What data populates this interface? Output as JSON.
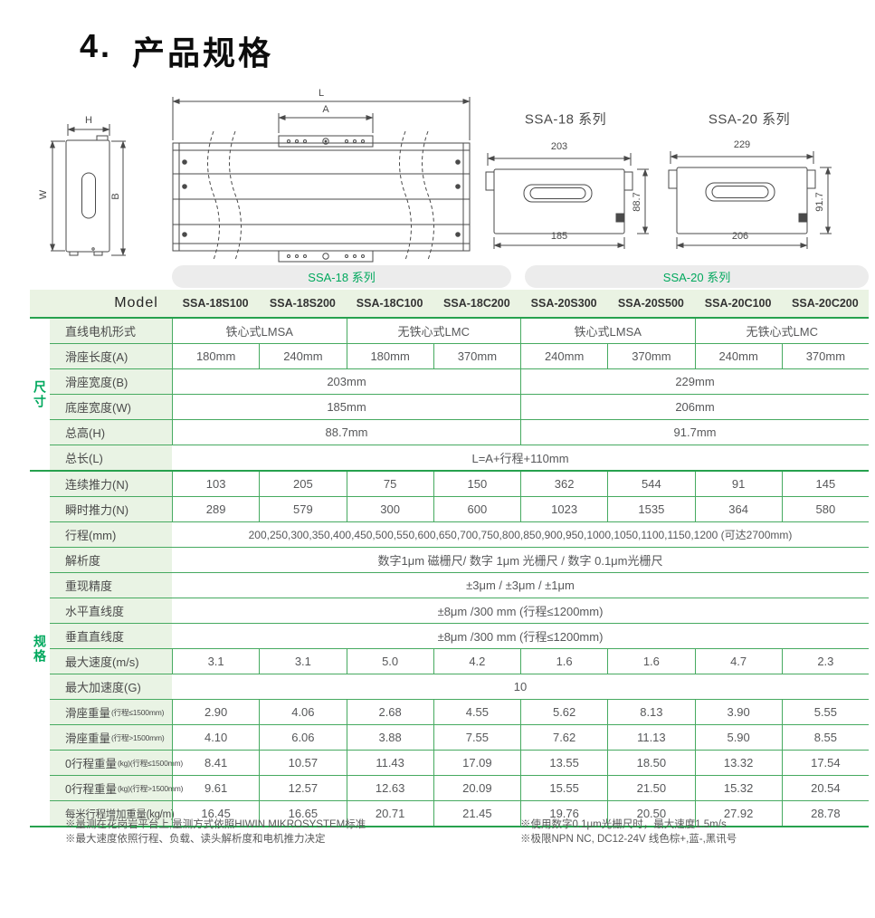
{
  "page": {
    "title_number": "4.",
    "title": "产品规格"
  },
  "colors": {
    "accent_green": "#00a85d",
    "table_border_green": "#46aa60",
    "section_line_green": "#27a14e",
    "label_bg_green": "#e9f3e4",
    "pill_bg": "#ececec"
  },
  "drawings": {
    "side_view": {
      "height_label": "H",
      "width_label": "W",
      "base_label": "B"
    },
    "top_view": {
      "length_label": "L",
      "slider_label": "A"
    },
    "ssa18_view": {
      "title": "SSA-18 系列",
      "top_width": "203",
      "height": "88.7",
      "base_width": "185"
    },
    "ssa20_view": {
      "title": "SSA-20 系列",
      "top_width": "229",
      "height": "91.7",
      "base_width": "206"
    }
  },
  "series_pills": {
    "ssa18": "SSA-18 系列",
    "ssa20": "SSA-20 系列"
  },
  "table": {
    "model_label": "Model",
    "models": [
      "SSA-18S100",
      "SSA-18S200",
      "SSA-18C100",
      "SSA-18C200",
      "SSA-20S300",
      "SSA-20S500",
      "SSA-20C100",
      "SSA-20C200"
    ],
    "sections": [
      {
        "label": "尺寸",
        "rows": [
          {
            "label": "直线电机形式",
            "cells": [
              {
                "t": "铁心式LMSA",
                "s": 2
              },
              {
                "t": "无铁心式LMC",
                "s": 2
              },
              {
                "t": "铁心式LMSA",
                "s": 2
              },
              {
                "t": "无铁心式LMC",
                "s": 2
              }
            ]
          },
          {
            "label": "滑座长度(A)",
            "cells": [
              {
                "t": "180mm",
                "s": 1
              },
              {
                "t": "240mm",
                "s": 1
              },
              {
                "t": "180mm",
                "s": 1
              },
              {
                "t": "370mm",
                "s": 1
              },
              {
                "t": "240mm",
                "s": 1
              },
              {
                "t": "370mm",
                "s": 1
              },
              {
                "t": "240mm",
                "s": 1
              },
              {
                "t": "370mm",
                "s": 1
              }
            ]
          },
          {
            "label": "滑座宽度(B)",
            "cells": [
              {
                "t": "203mm",
                "s": 4
              },
              {
                "t": "229mm",
                "s": 4
              }
            ]
          },
          {
            "label": "底座宽度(W)",
            "cells": [
              {
                "t": "185mm",
                "s": 4
              },
              {
                "t": "206mm",
                "s": 4
              }
            ]
          },
          {
            "label": "总高(H)",
            "cells": [
              {
                "t": "88.7mm",
                "s": 4
              },
              {
                "t": "91.7mm",
                "s": 4
              }
            ]
          },
          {
            "label": "总长(L)",
            "cells": [
              {
                "t": "L=A+行程+110mm",
                "s": 8
              }
            ]
          }
        ]
      },
      {
        "label": "规格",
        "rows": [
          {
            "label": "连续推力(N)",
            "cells": [
              {
                "t": "103",
                "s": 1
              },
              {
                "t": "205",
                "s": 1
              },
              {
                "t": "75",
                "s": 1
              },
              {
                "t": "150",
                "s": 1
              },
              {
                "t": "362",
                "s": 1
              },
              {
                "t": "544",
                "s": 1
              },
              {
                "t": "91",
                "s": 1
              },
              {
                "t": "145",
                "s": 1
              }
            ]
          },
          {
            "label": "瞬时推力(N)",
            "cells": [
              {
                "t": "289",
                "s": 1
              },
              {
                "t": "579",
                "s": 1
              },
              {
                "t": "300",
                "s": 1
              },
              {
                "t": "600",
                "s": 1
              },
              {
                "t": "1023",
                "s": 1
              },
              {
                "t": "1535",
                "s": 1
              },
              {
                "t": "364",
                "s": 1
              },
              {
                "t": "580",
                "s": 1
              }
            ]
          },
          {
            "label": "行程(mm)",
            "cells": [
              {
                "t": "200,250,300,350,400,450,500,550,600,650,700,750,800,850,900,950,1000,1050,1100,1150,1200 (可达2700mm)",
                "s": 8,
                "fs": 12
              }
            ]
          },
          {
            "label": "解析度",
            "cells": [
              {
                "t": "数字1μm 磁栅尺/ 数字 1μm 光栅尺 / 数字 0.1μm光栅尺",
                "s": 8
              }
            ]
          },
          {
            "label": "重现精度",
            "cells": [
              {
                "t": "±3μm / ±3μm / ±1μm",
                "s": 8
              }
            ]
          },
          {
            "label": "水平直线度",
            "cells": [
              {
                "t": "±8μm /300 mm (行程≤1200mm)",
                "s": 8
              }
            ]
          },
          {
            "label": "垂直直线度",
            "cells": [
              {
                "t": "±8μm /300 mm (行程≤1200mm)",
                "s": 8
              }
            ]
          },
          {
            "label": "最大速度(m/s)",
            "cells": [
              {
                "t": "3.1",
                "s": 1
              },
              {
                "t": "3.1",
                "s": 1
              },
              {
                "t": "5.0",
                "s": 1
              },
              {
                "t": "4.2",
                "s": 1
              },
              {
                "t": "1.6",
                "s": 1
              },
              {
                "t": "1.6",
                "s": 1
              },
              {
                "t": "4.7",
                "s": 1
              },
              {
                "t": "2.3",
                "s": 1
              }
            ]
          },
          {
            "label": "最大加速度(G)",
            "cells": [
              {
                "t": "10",
                "s": 8
              }
            ]
          },
          {
            "label": "滑座重量",
            "small": "(行程≤1500mm)",
            "cells": [
              {
                "t": "2.90",
                "s": 1
              },
              {
                "t": "4.06",
                "s": 1
              },
              {
                "t": "2.68",
                "s": 1
              },
              {
                "t": "4.55",
                "s": 1
              },
              {
                "t": "5.62",
                "s": 1
              },
              {
                "t": "8.13",
                "s": 1
              },
              {
                "t": "3.90",
                "s": 1
              },
              {
                "t": "5.55",
                "s": 1
              }
            ]
          },
          {
            "label": "滑座重量",
            "small": "(行程>1500mm)",
            "cells": [
              {
                "t": "4.10",
                "s": 1
              },
              {
                "t": "6.06",
                "s": 1
              },
              {
                "t": "3.88",
                "s": 1
              },
              {
                "t": "7.55",
                "s": 1
              },
              {
                "t": "7.62",
                "s": 1
              },
              {
                "t": "11.13",
                "s": 1
              },
              {
                "t": "5.90",
                "s": 1
              },
              {
                "t": "8.55",
                "s": 1
              }
            ]
          },
          {
            "label": "0行程重量",
            "small": "(kg)(行程≤1500mm)",
            "cells": [
              {
                "t": "8.41",
                "s": 1
              },
              {
                "t": "10.57",
                "s": 1
              },
              {
                "t": "11.43",
                "s": 1
              },
              {
                "t": "17.09",
                "s": 1
              },
              {
                "t": "13.55",
                "s": 1
              },
              {
                "t": "18.50",
                "s": 1
              },
              {
                "t": "13.32",
                "s": 1
              },
              {
                "t": "17.54",
                "s": 1
              }
            ]
          },
          {
            "label": "0行程重量",
            "small": "(kg)(行程>1500mm)",
            "cells": [
              {
                "t": "9.61",
                "s": 1
              },
              {
                "t": "12.57",
                "s": 1
              },
              {
                "t": "12.63",
                "s": 1
              },
              {
                "t": "20.09",
                "s": 1
              },
              {
                "t": "15.55",
                "s": 1
              },
              {
                "t": "21.50",
                "s": 1
              },
              {
                "t": "15.32",
                "s": 1
              },
              {
                "t": "20.54",
                "s": 1
              }
            ]
          },
          {
            "label": "每米行程增加重量(kg/m)",
            "compact": true,
            "cells": [
              {
                "t": "16.45",
                "s": 1
              },
              {
                "t": "16.65",
                "s": 1
              },
              {
                "t": "20.71",
                "s": 1
              },
              {
                "t": "21.45",
                "s": 1
              },
              {
                "t": "19.76",
                "s": 1
              },
              {
                "t": "20.50",
                "s": 1
              },
              {
                "t": "27.92",
                "s": 1
              },
              {
                "t": "28.78",
                "s": 1
              }
            ]
          }
        ]
      }
    ]
  },
  "footnotes": {
    "left": [
      "※量测在花岗岩平台上,量测方式依照HIWIN MIKROSYSTEM标准",
      "※最大速度依照行程、负载、读头解析度和电机推力决定"
    ],
    "right": [
      "※使用数字0.1μm光栅尺时，最大速度1.5m/s",
      "※极限NPN NC, DC12-24V 线色棕+,蓝-,黑讯号"
    ]
  }
}
